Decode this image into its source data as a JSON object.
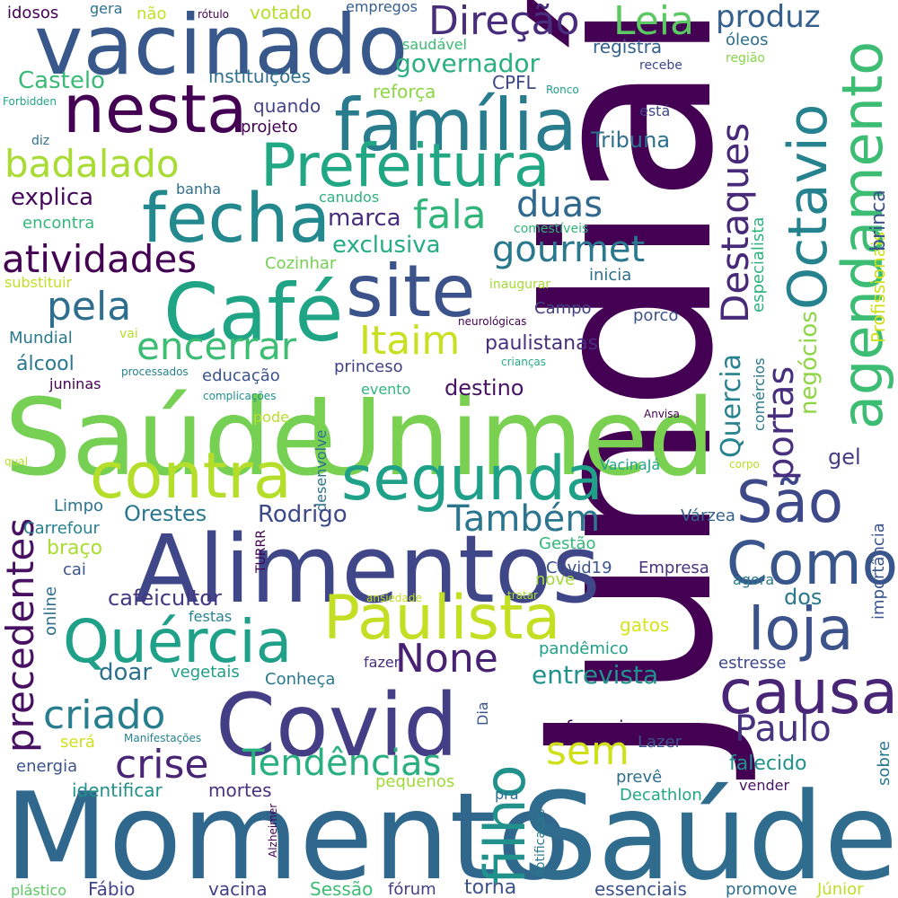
{
  "words": [
    {
      "text": "Jundiaí",
      "color": "#440154"
    },
    {
      "text": "Momento",
      "color": "#30678d"
    },
    {
      "text": "Saúde",
      "color": "#2f6c8e"
    },
    {
      "text": "Saúde",
      "color": "#75d054"
    },
    {
      "text": "Unimed",
      "color": "#7ad151"
    },
    {
      "text": "Alimentos",
      "color": "#3f4788"
    },
    {
      "text": "Covid",
      "color": "#433e85"
    },
    {
      "text": "vacinado",
      "color": "#38588c"
    },
    {
      "text": "Café",
      "color": "#20a486"
    },
    {
      "text": "site",
      "color": "#3b528b"
    },
    {
      "text": "família",
      "color": "#287c8e"
    },
    {
      "text": "Prefeitura",
      "color": "#22a785"
    },
    {
      "text": "fecha",
      "color": "#23898e"
    },
    {
      "text": "nesta",
      "color": "#440154"
    },
    {
      "text": "contra",
      "color": "#b5de2b"
    },
    {
      "text": "segunda",
      "color": "#1fa088"
    },
    {
      "text": "Paulista",
      "color": "#c2df23"
    },
    {
      "text": "Quércia",
      "color": "#1fa088"
    },
    {
      "text": "causa",
      "color": "#482576"
    },
    {
      "text": "loja",
      "color": "#3b528b"
    },
    {
      "text": "Como",
      "color": "#39568c"
    },
    {
      "text": "São",
      "color": "#3e4989"
    },
    {
      "text": "filho",
      "color": "#21918c"
    },
    {
      "text": "agendamento",
      "color": "#3dbc74"
    },
    {
      "text": "Octavio",
      "color": "#26828e"
    },
    {
      "text": "Direção",
      "color": "#472d7b"
    },
    {
      "text": "Leia",
      "color": "#5cc863"
    },
    {
      "text": "produz",
      "color": "#35608d"
    },
    {
      "text": "badalado",
      "color": "#a8db34"
    },
    {
      "text": "atividades",
      "color": "#440154"
    },
    {
      "text": "fala",
      "color": "#31b57b"
    },
    {
      "text": "duas",
      "color": "#31688e"
    },
    {
      "text": "gourmet",
      "color": "#2a788e"
    },
    {
      "text": "Destaques",
      "color": "#482979"
    },
    {
      "text": "encerrar",
      "color": "#3dbc74"
    },
    {
      "text": "Itaim",
      "color": "#c8e020"
    },
    {
      "text": "pela",
      "color": "#2e6e8e"
    },
    {
      "text": "criado",
      "color": "#287d8e"
    },
    {
      "text": "crise",
      "color": "#482575"
    },
    {
      "text": "Tendências",
      "color": "#2ab07f"
    },
    {
      "text": "sem",
      "color": "#d0e11c"
    },
    {
      "text": "precedentes",
      "color": "#471063"
    },
    {
      "text": "None",
      "color": "#482173"
    },
    {
      "text": "Também",
      "color": "#2b758e"
    },
    {
      "text": "Paulo",
      "color": "#46327e"
    },
    {
      "text": "portas",
      "color": "#472f7d"
    },
    {
      "text": "Quercia",
      "color": "#26828e"
    },
    {
      "text": "negócios",
      "color": "#8ed645"
    },
    {
      "text": "Profissionais",
      "color": "#d0e11c"
    },
    {
      "text": "brinca",
      "color": "#3b528b"
    },
    {
      "text": "especialista",
      "color": "#2db27d"
    },
    {
      "text": "explica",
      "color": "#46075a"
    },
    {
      "text": "marca",
      "color": "#472e7c"
    },
    {
      "text": "exclusiva",
      "color": "#25ac82"
    },
    {
      "text": "governador",
      "color": "#2ab07f"
    },
    {
      "text": "Castelo",
      "color": "#3aba76"
    },
    {
      "text": "instituições",
      "color": "#2e6e8e"
    },
    {
      "text": "reforça",
      "color": "#8ed645"
    },
    {
      "text": "CPFL",
      "color": "#3f4788"
    },
    {
      "text": "registra",
      "color": "#34618d"
    },
    {
      "text": "óleos",
      "color": "#2e6f8e"
    },
    {
      "text": "região",
      "color": "#89d548"
    },
    {
      "text": "recebe",
      "color": "#3f4889"
    },
    {
      "text": "Ronco",
      "color": "#1f9f88"
    },
    {
      "text": "está",
      "color": "#414487"
    },
    {
      "text": "Tribuna",
      "color": "#2d718e"
    },
    {
      "text": "quando",
      "color": "#414487"
    },
    {
      "text": "projeto",
      "color": "#440154"
    },
    {
      "text": "idosos",
      "color": "#440154"
    },
    {
      "text": "gera",
      "color": "#2c728e"
    },
    {
      "text": "não",
      "color": "#c2df23"
    },
    {
      "text": "rótulo",
      "color": "#440154"
    },
    {
      "text": "votado",
      "color": "#b5de2b"
    },
    {
      "text": "empregos",
      "color": "#355f8d"
    },
    {
      "text": "saudável",
      "color": "#3dbc74"
    },
    {
      "text": "Forbidden",
      "color": "#21a585"
    },
    {
      "text": "diz",
      "color": "#2d708e"
    },
    {
      "text": "banha",
      "color": "#2e6e8e"
    },
    {
      "text": "canudos",
      "color": "#2db27d"
    },
    {
      "text": "comestíveis",
      "color": "#31b57b"
    },
    {
      "text": "encontra",
      "color": "#35b779"
    },
    {
      "text": "Cozinhar",
      "color": "#75d054"
    },
    {
      "text": "substituir",
      "color": "#c0df25"
    },
    {
      "text": "inaugurar",
      "color": "#a5db36"
    },
    {
      "text": "inicia",
      "color": "#2e6e8e"
    },
    {
      "text": "Campo",
      "color": "#424186"
    },
    {
      "text": "porco",
      "color": "#3b528b"
    },
    {
      "text": "neurológicas",
      "color": "#440154"
    },
    {
      "text": "Mundial",
      "color": "#2a788e"
    },
    {
      "text": "vai",
      "color": "#b5de2b"
    },
    {
      "text": "paulistanas",
      "color": "#46307e"
    },
    {
      "text": "comércios",
      "color": "#2a788e"
    },
    {
      "text": "álcool",
      "color": "#2a788e"
    },
    {
      "text": "processados",
      "color": "#25848e"
    },
    {
      "text": "educação",
      "color": "#3b528b"
    },
    {
      "text": "princeso",
      "color": "#414487"
    },
    {
      "text": "crianças",
      "color": "#25ac82"
    },
    {
      "text": "juninas",
      "color": "#440154"
    },
    {
      "text": "complicações",
      "color": "#21918c"
    },
    {
      "text": "evento",
      "color": "#31b57b"
    },
    {
      "text": "destino",
      "color": "#471365"
    },
    {
      "text": "desenvolve",
      "color": "#2d708e"
    },
    {
      "text": "pode",
      "color": "#b8de29"
    },
    {
      "text": "Anvisa",
      "color": "#440154"
    },
    {
      "text": "gel",
      "color": "#433e85"
    },
    {
      "text": "qual",
      "color": "#b5de2b"
    },
    {
      "text": "VacinaJá",
      "color": "#20a386"
    },
    {
      "text": "corpo",
      "color": "#b8de29"
    },
    {
      "text": "Limpo",
      "color": "#2c738e"
    },
    {
      "text": "Orestes",
      "color": "#2a788e"
    },
    {
      "text": "Rodrigo",
      "color": "#3e4989"
    },
    {
      "text": "Várzea",
      "color": "#33638d"
    },
    {
      "text": "Carrefour",
      "color": "#26828e"
    },
    {
      "text": "braço",
      "color": "#aadc32"
    },
    {
      "text": "Gestão",
      "color": "#35b779"
    },
    {
      "text": "importância",
      "color": "#3a548c"
    },
    {
      "text": "cai",
      "color": "#3b528b"
    },
    {
      "text": "TURRR",
      "color": "#440154"
    },
    {
      "text": "Covid19",
      "color": "#3b528b"
    },
    {
      "text": "Empresa",
      "color": "#46337f"
    },
    {
      "text": "agora",
      "color": "#2a788e"
    },
    {
      "text": "online",
      "color": "#2e6e8e"
    },
    {
      "text": "cafeicultor",
      "color": "#453781"
    },
    {
      "text": "nove",
      "color": "#a2da37"
    },
    {
      "text": "dos",
      "color": "#2a788e"
    },
    {
      "text": "ansiedade",
      "color": "#c2df23"
    },
    {
      "text": "tratar",
      "color": "#addc30"
    },
    {
      "text": "festas",
      "color": "#26828e"
    },
    {
      "text": "gatos",
      "color": "#d8e219"
    },
    {
      "text": "doar",
      "color": "#2d708e"
    },
    {
      "text": "vegetais",
      "color": "#1f9e89"
    },
    {
      "text": "pandêmico",
      "color": "#1fa088"
    },
    {
      "text": "Conheça",
      "color": "#2a788e"
    },
    {
      "text": "fazer",
      "color": "#46307e"
    },
    {
      "text": "entrevista",
      "color": "#21918c"
    },
    {
      "text": "estresse",
      "color": "#3e4989"
    },
    {
      "text": "Dia",
      "color": "#3a548c"
    },
    {
      "text": "será",
      "color": "#d0e11c"
    },
    {
      "text": "Manifestações",
      "color": "#26828e"
    },
    {
      "text": "enfermeira",
      "color": "#440154"
    },
    {
      "text": "Lazer",
      "color": "#3b528b"
    },
    {
      "text": "falecido",
      "color": "#20928c"
    },
    {
      "text": "energia",
      "color": "#3b528b"
    },
    {
      "text": "prevê",
      "color": "#2e6e8e"
    },
    {
      "text": "sobre",
      "color": "#2a788e"
    },
    {
      "text": "identificar",
      "color": "#21918c"
    },
    {
      "text": "mortes",
      "color": "#46327e"
    },
    {
      "text": "pequenos",
      "color": "#a0da39"
    },
    {
      "text": "pra",
      "color": "#2e6e8e"
    },
    {
      "text": "Decathlon",
      "color": "#22a785"
    },
    {
      "text": "vender",
      "color": "#471365"
    },
    {
      "text": "notificação",
      "color": "#2a788e"
    },
    {
      "text": "Alzheimer",
      "color": "#440154"
    },
    {
      "text": "plástico",
      "color": "#5cc863"
    },
    {
      "text": "Fábio",
      "color": "#414487"
    },
    {
      "text": "vacina",
      "color": "#424186"
    },
    {
      "text": "Sessão",
      "color": "#3dbc74"
    },
    {
      "text": "fórum",
      "color": "#424186"
    },
    {
      "text": "torna",
      "color": "#3b528b"
    },
    {
      "text": "essenciais",
      "color": "#3b528b"
    },
    {
      "text": "promove",
      "color": "#2e6e8e"
    },
    {
      "text": "Júnior",
      "color": "#bddf26"
    }
  ]
}
